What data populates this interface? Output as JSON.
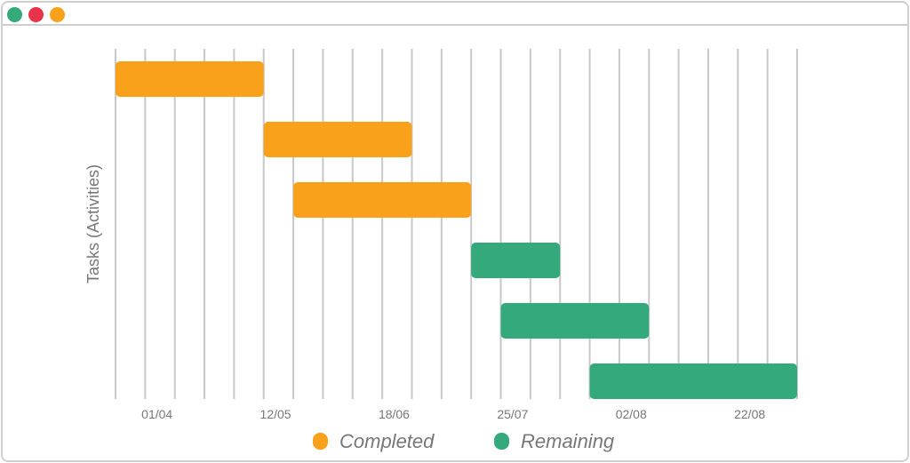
{
  "window": {
    "controls": [
      {
        "name": "green",
        "color": "#34a97b"
      },
      {
        "name": "red",
        "color": "#e8334a"
      },
      {
        "name": "orange",
        "color": "#f9a11b"
      }
    ]
  },
  "chart_data": {
    "type": "gantt",
    "ylabel": "Tasks (Activities)",
    "xlabel": "",
    "x_tick_labels": [
      "01/04",
      "12/05",
      "18/06",
      "25/07",
      "02/08",
      "22/08"
    ],
    "periods": 23,
    "grid": true,
    "legend_position": "bottom",
    "series": [
      {
        "name": "Completed",
        "color": "#f9a11b"
      },
      {
        "name": "Remaining",
        "color": "#34a97b"
      }
    ],
    "tasks": [
      {
        "start": 0,
        "end": 5,
        "status": "Completed"
      },
      {
        "start": 5,
        "end": 10,
        "status": "Completed"
      },
      {
        "start": 6,
        "end": 12,
        "status": "Completed"
      },
      {
        "start": 12,
        "end": 15,
        "status": "Remaining"
      },
      {
        "start": 13,
        "end": 18,
        "status": "Remaining"
      },
      {
        "start": 16,
        "end": 23,
        "status": "Remaining"
      }
    ]
  }
}
